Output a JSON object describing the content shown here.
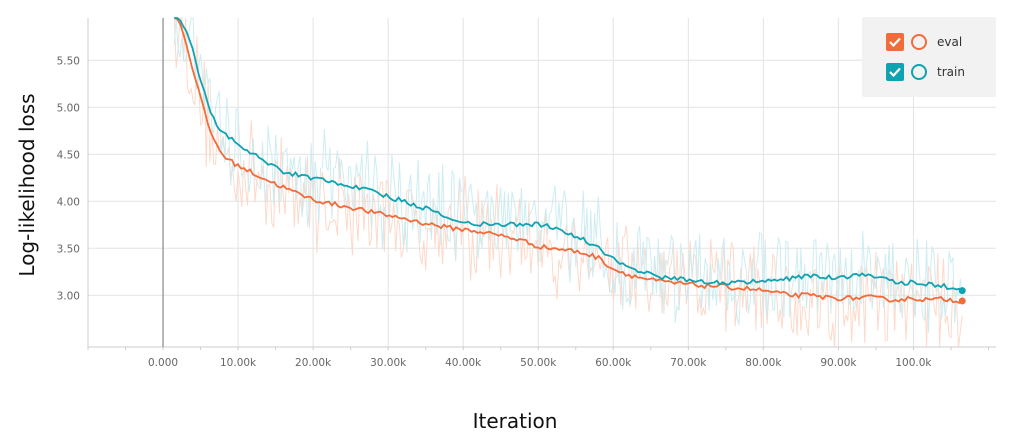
{
  "chart_data": {
    "type": "line",
    "xlabel": "Iteration",
    "ylabel": "Log-likelihood loss",
    "xlim": [
      -10000,
      111000
    ],
    "ylim": [
      2.45,
      5.95
    ],
    "x_ticks": [
      0,
      10000,
      20000,
      30000,
      40000,
      50000,
      60000,
      70000,
      80000,
      90000,
      100000
    ],
    "x_tick_labels": [
      "0.000",
      "10.00k",
      "20.00k",
      "30.00k",
      "40.00k",
      "50.00k",
      "60.00k",
      "70.00k",
      "80.00k",
      "90.00k",
      "100.0k"
    ],
    "y_ticks": [
      3.0,
      3.5,
      4.0,
      4.5,
      5.0,
      5.5
    ],
    "y_tick_labels": [
      "3.00",
      "3.50",
      "4.00",
      "4.50",
      "5.00",
      "5.50"
    ],
    "grid": true,
    "legend_position": "top-right",
    "series": [
      {
        "name": "eval",
        "color": "#f26b3a",
        "raw_color": "#fdd5c4",
        "x": [
          1500,
          2500,
          3500,
          4500,
          5500,
          6500,
          7500,
          8500,
          10000,
          12000,
          14000,
          16000,
          18000,
          20000,
          22000,
          24000,
          26000,
          28000,
          30000,
          32000,
          34000,
          36000,
          38000,
          40000,
          42000,
          44000,
          46000,
          48000,
          50000,
          52000,
          54000,
          56000,
          58000,
          60000,
          62000,
          64000,
          66000,
          68000,
          70000,
          72000,
          74000,
          76000,
          78000,
          80000,
          82000,
          84000,
          86000,
          88000,
          90000,
          92000,
          94000,
          96000,
          98000,
          100000,
          102000,
          104000,
          106500
        ],
        "values": [
          6.0,
          5.85,
          5.55,
          5.25,
          4.95,
          4.7,
          4.55,
          4.45,
          4.38,
          4.3,
          4.22,
          4.15,
          4.08,
          4.02,
          3.98,
          3.95,
          3.92,
          3.88,
          3.85,
          3.82,
          3.78,
          3.75,
          3.72,
          3.7,
          3.68,
          3.65,
          3.62,
          3.58,
          3.52,
          3.5,
          3.48,
          3.45,
          3.4,
          3.28,
          3.22,
          3.18,
          3.15,
          3.13,
          3.12,
          3.1,
          3.1,
          3.08,
          3.07,
          3.05,
          3.02,
          3.0,
          3.0,
          2.98,
          2.97,
          2.97,
          2.98,
          2.96,
          2.95,
          2.97,
          2.95,
          2.96,
          2.94
        ]
      },
      {
        "name": "train",
        "color": "#0fa3b1",
        "raw_color": "#c8ebf2",
        "x": [
          1500,
          2500,
          3500,
          4500,
          5500,
          6500,
          7500,
          8500,
          10000,
          12000,
          14000,
          16000,
          18000,
          20000,
          22000,
          24000,
          26000,
          28000,
          30000,
          32000,
          34000,
          36000,
          38000,
          40000,
          42000,
          44000,
          46000,
          48000,
          50000,
          52000,
          54000,
          56000,
          58000,
          60000,
          62000,
          64000,
          66000,
          68000,
          70000,
          72000,
          74000,
          76000,
          78000,
          80000,
          82000,
          84000,
          86000,
          88000,
          90000,
          92000,
          94000,
          96000,
          98000,
          100000,
          102000,
          104000,
          106500
        ],
        "values": [
          6.05,
          5.92,
          5.72,
          5.45,
          5.15,
          4.92,
          4.78,
          4.7,
          4.62,
          4.5,
          4.4,
          4.32,
          4.28,
          4.25,
          4.22,
          4.18,
          4.15,
          4.1,
          4.05,
          4.0,
          3.95,
          3.9,
          3.82,
          3.78,
          3.76,
          3.75,
          3.76,
          3.74,
          3.76,
          3.72,
          3.65,
          3.6,
          3.5,
          3.38,
          3.3,
          3.25,
          3.2,
          3.18,
          3.16,
          3.15,
          3.14,
          3.13,
          3.14,
          3.15,
          3.16,
          3.18,
          3.2,
          3.2,
          3.18,
          3.2,
          3.22,
          3.18,
          3.12,
          3.15,
          3.12,
          3.1,
          3.05
        ]
      }
    ]
  },
  "legend": {
    "items": [
      {
        "label": "eval",
        "color": "#f26b3a",
        "checked": true
      },
      {
        "label": "train",
        "color": "#0fa3b1",
        "checked": true
      }
    ]
  }
}
